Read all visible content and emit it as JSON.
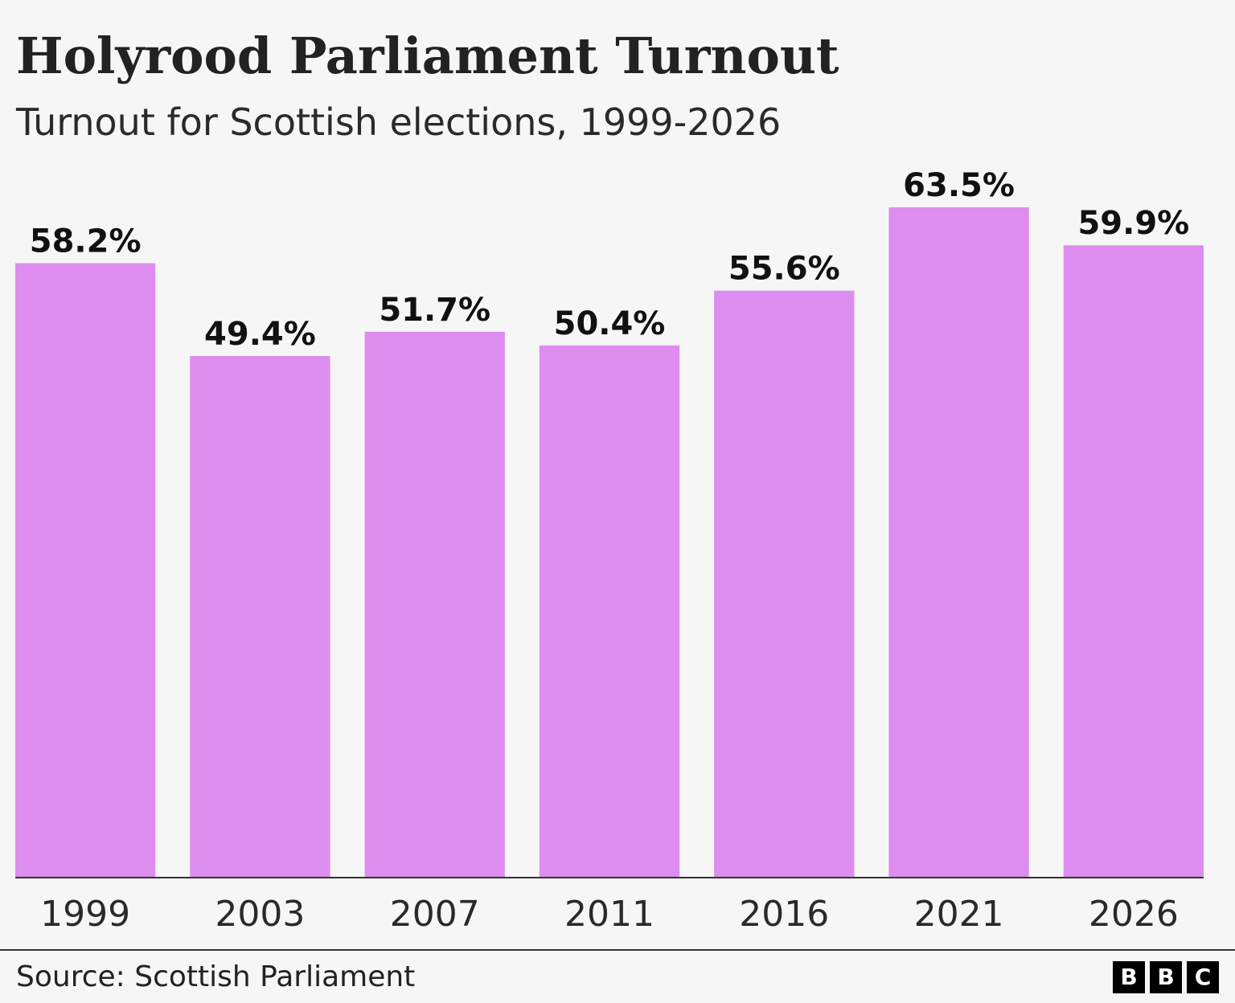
{
  "header": {
    "title": "Holyrood Parliament Turnout",
    "subtitle": "Turnout for Scottish elections, 1999-2026"
  },
  "footer": {
    "source": "Source: Scottish Parliament",
    "logo_letters": [
      "B",
      "B",
      "C"
    ]
  },
  "colors": {
    "bar": "#dd8dee",
    "axis": "#333333",
    "background": "#f6f6f6"
  },
  "chart_data": {
    "type": "bar",
    "title": "Holyrood Parliament Turnout",
    "subtitle": "Turnout for Scottish elections, 1999-2026",
    "categories": [
      "1999",
      "2003",
      "2007",
      "2011",
      "2016",
      "2021",
      "2026"
    ],
    "values": [
      58.2,
      49.4,
      51.7,
      50.4,
      55.6,
      63.5,
      59.9
    ],
    "data_labels": [
      "58.2%",
      "49.4%",
      "51.7%",
      "50.4%",
      "55.6%",
      "63.5%",
      "59.9%"
    ],
    "ylim": [
      0,
      63.5
    ],
    "grid": false,
    "legend": "none"
  }
}
